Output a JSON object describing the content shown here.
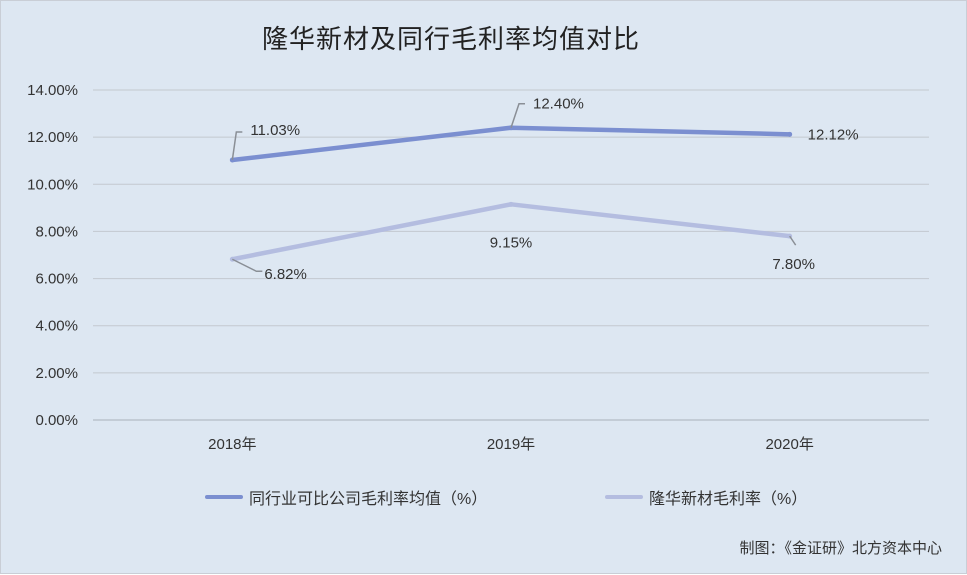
{
  "chart_data": {
    "type": "line",
    "title": "隆华新材及同行毛利率均值对比",
    "categories": [
      "2018年",
      "2019年",
      "2020年"
    ],
    "ylim": [
      0,
      14
    ],
    "yticks": [
      "14.00%",
      "12.00%",
      "10.00%",
      "8.00%",
      "6.00%",
      "4.00%",
      "2.00%",
      "0.00%"
    ],
    "grid": true,
    "legend_position": "bottom",
    "series": [
      {
        "name": "同行业可比公司毛利率均值（%）",
        "values": [
          11.03,
          12.4,
          12.12
        ],
        "labels": [
          "11.03%",
          "12.40%",
          "12.12%"
        ],
        "color": "#7b8fd0"
      },
      {
        "name": "隆华新材毛利率（%）",
        "values": [
          6.82,
          9.15,
          7.8
        ],
        "labels": [
          "6.82%",
          "9.15%",
          "7.80%"
        ],
        "color": "#b4bde0"
      }
    ],
    "source": "制图：《金证研》北方资本中心"
  }
}
